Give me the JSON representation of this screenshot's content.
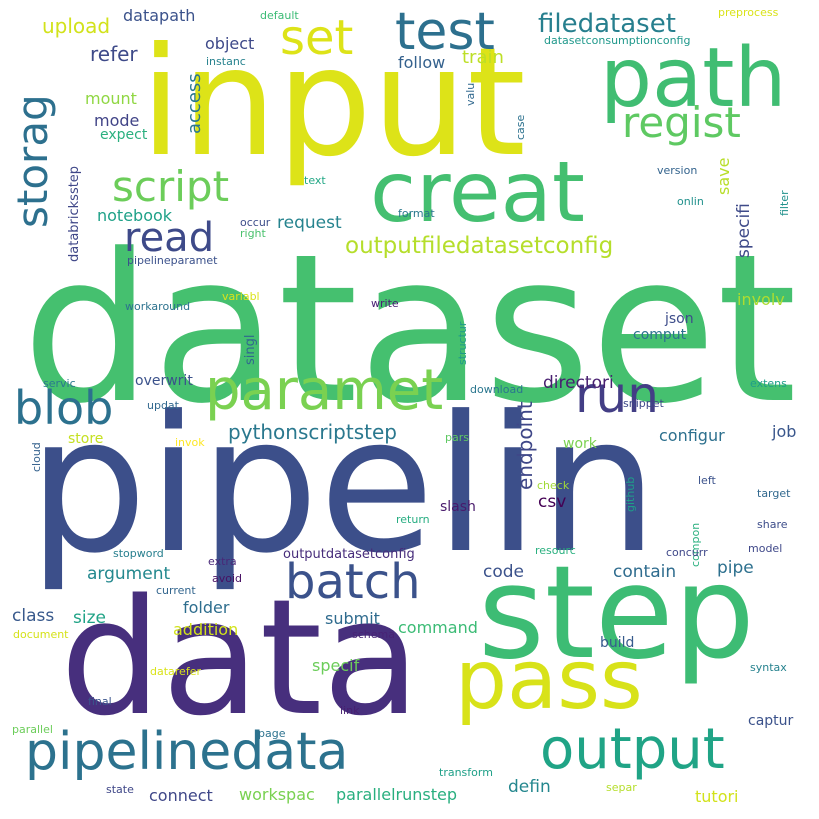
{
  "words": [
    {
      "text": "dataset",
      "color": "#45c06f"
    },
    {
      "text": "pipelin",
      "color": "#3c4f8a"
    },
    {
      "text": "input",
      "color": "#dde318"
    },
    {
      "text": "data",
      "color": "#472f7d"
    },
    {
      "text": "step",
      "color": "#3dbc74"
    },
    {
      "text": "creat",
      "color": "#44bf70"
    },
    {
      "text": "path",
      "color": "#40bd72"
    },
    {
      "text": "pass",
      "color": "#d8e219"
    },
    {
      "text": "test",
      "color": "#2d708e"
    },
    {
      "text": "set",
      "color": "#dde318"
    },
    {
      "text": "output",
      "color": "#20a486"
    },
    {
      "text": "pipelinedata",
      "color": "#2c728e"
    },
    {
      "text": "paramet",
      "color": "#7ad151"
    },
    {
      "text": "batch",
      "color": "#3b528b"
    },
    {
      "text": "run",
      "color": "#433e85"
    },
    {
      "text": "blob",
      "color": "#2c718e"
    },
    {
      "text": "script",
      "color": "#6ccd5a"
    },
    {
      "text": "regist",
      "color": "#5ec962"
    },
    {
      "text": "storag",
      "color": "#2d708e"
    },
    {
      "text": "read",
      "color": "#3e4a89"
    },
    {
      "text": "filedataset",
      "color": "#277f8e"
    },
    {
      "text": "outputfiledatasetconfig",
      "color": "#b5de2b"
    },
    {
      "text": "pythonscriptstep",
      "color": "#2a788e"
    },
    {
      "text": "upload",
      "color": "#d2e21b"
    },
    {
      "text": "datapath",
      "color": "#3b528b"
    },
    {
      "text": "refer",
      "color": "#3e4a89"
    },
    {
      "text": "object",
      "color": "#3e4989"
    },
    {
      "text": "train",
      "color": "#bddf26"
    },
    {
      "text": "follow",
      "color": "#34618d"
    },
    {
      "text": "access",
      "color": "#2a788e"
    },
    {
      "text": "mount",
      "color": "#90d743"
    },
    {
      "text": "mode",
      "color": "#414487"
    },
    {
      "text": "expect",
      "color": "#2ab07f"
    },
    {
      "text": "databricksstep",
      "color": "#3f4788"
    },
    {
      "text": "notebook",
      "color": "#1fa188"
    },
    {
      "text": "request",
      "color": "#25838e"
    },
    {
      "text": "specifi",
      "color": "#3e4a89"
    },
    {
      "text": "save",
      "color": "#b8de29"
    },
    {
      "text": "instanc",
      "color": "#26828e"
    },
    {
      "text": "valu",
      "color": "#31688e"
    },
    {
      "text": "case",
      "color": "#2c718e"
    },
    {
      "text": "default",
      "color": "#3bbb75"
    },
    {
      "text": "preprocess",
      "color": "#dae319"
    },
    {
      "text": "datasetconsumptionconfig",
      "color": "#1f988b"
    },
    {
      "text": "version",
      "color": "#33638d"
    },
    {
      "text": "filter",
      "color": "#21918c"
    },
    {
      "text": "onlin",
      "color": "#21918c"
    },
    {
      "text": "text",
      "color": "#22a785"
    },
    {
      "text": "format",
      "color": "#2a788e"
    },
    {
      "text": "occur",
      "color": "#3d4e8a"
    },
    {
      "text": "right",
      "color": "#4ac16d"
    },
    {
      "text": "pipelineparamet",
      "color": "#3b518b"
    },
    {
      "text": "variabl",
      "color": "#dae319"
    },
    {
      "text": "workaround",
      "color": "#2c728e"
    },
    {
      "text": "write",
      "color": "#482173"
    },
    {
      "text": "singl",
      "color": "#30698e"
    },
    {
      "text": "structur",
      "color": "#1f9a8a"
    },
    {
      "text": "involv",
      "color": "#addc30"
    },
    {
      "text": "json",
      "color": "#3d4d8a"
    },
    {
      "text": "comput",
      "color": "#2c728e"
    },
    {
      "text": "servic",
      "color": "#2a788e"
    },
    {
      "text": "overwrit",
      "color": "#3b528b"
    },
    {
      "text": "directori",
      "color": "#481f70"
    },
    {
      "text": "download",
      "color": "#2a768e"
    },
    {
      "text": "extens",
      "color": "#1f9e89"
    },
    {
      "text": "updat",
      "color": "#31688e"
    },
    {
      "text": "snippet",
      "color": "#3f4889"
    },
    {
      "text": "endpoint",
      "color": "#3f4788"
    },
    {
      "text": "csv",
      "color": "#440154"
    },
    {
      "text": "configur",
      "color": "#2d708e"
    },
    {
      "text": "job",
      "color": "#39568c"
    },
    {
      "text": "store",
      "color": "#c5e021"
    },
    {
      "text": "invok",
      "color": "#fde725"
    },
    {
      "text": "pars",
      "color": "#5ec962"
    },
    {
      "text": "work",
      "color": "#7ad151"
    },
    {
      "text": "cloud",
      "color": "#34618d"
    },
    {
      "text": "check",
      "color": "#a2da37"
    },
    {
      "text": "github",
      "color": "#1f9e89"
    },
    {
      "text": "left",
      "color": "#3b528b"
    },
    {
      "text": "target",
      "color": "#31688e"
    },
    {
      "text": "slash",
      "color": "#481a6c"
    },
    {
      "text": "return",
      "color": "#26ad81"
    },
    {
      "text": "compon",
      "color": "#2ab07f"
    },
    {
      "text": "share",
      "color": "#3d4d8a"
    },
    {
      "text": "stopword",
      "color": "#277f8e"
    },
    {
      "text": "outputdatasetconfig",
      "color": "#472d7b"
    },
    {
      "text": "resourc",
      "color": "#2ab07f"
    },
    {
      "text": "concurr",
      "color": "#3f4889"
    },
    {
      "text": "model",
      "color": "#3f4889"
    },
    {
      "text": "extra",
      "color": "#482878"
    },
    {
      "text": "argument",
      "color": "#23888e"
    },
    {
      "text": "avoid",
      "color": "#471063"
    },
    {
      "text": "current",
      "color": "#32658e"
    },
    {
      "text": "code",
      "color": "#3b528b"
    },
    {
      "text": "contain",
      "color": "#2f6c8e"
    },
    {
      "text": "pipe",
      "color": "#2d708e"
    },
    {
      "text": "class",
      "color": "#38598c"
    },
    {
      "text": "size",
      "color": "#20a386"
    },
    {
      "text": "folder",
      "color": "#2e6e8e"
    },
    {
      "text": "submit",
      "color": "#2f6b8e"
    },
    {
      "text": "command",
      "color": "#3bbb75"
    },
    {
      "text": "document",
      "color": "#d5e21a"
    },
    {
      "text": "schema",
      "color": "#482475"
    },
    {
      "text": "addition",
      "color": "#d2e21b"
    },
    {
      "text": "specif",
      "color": "#6ccd5a"
    },
    {
      "text": "build",
      "color": "#375b8d"
    },
    {
      "text": "syntax",
      "color": "#26828e"
    },
    {
      "text": "datarefer",
      "color": "#dae319"
    },
    {
      "text": "final",
      "color": "#3a548c"
    },
    {
      "text": "link",
      "color": "#481f70"
    },
    {
      "text": "captur",
      "color": "#3b528b"
    },
    {
      "text": "parallel",
      "color": "#6ccd5a"
    },
    {
      "text": "page",
      "color": "#2c728e"
    },
    {
      "text": "transform",
      "color": "#1fa088"
    },
    {
      "text": "state",
      "color": "#3f4788"
    },
    {
      "text": "connect",
      "color": "#3f4788"
    },
    {
      "text": "workspac",
      "color": "#79d151"
    },
    {
      "text": "parallelrunstep",
      "color": "#29af7f"
    },
    {
      "text": "defin",
      "color": "#24878e"
    },
    {
      "text": "separ",
      "color": "#b5de2b"
    },
    {
      "text": "tutori",
      "color": "#d2e21b"
    }
  ]
}
